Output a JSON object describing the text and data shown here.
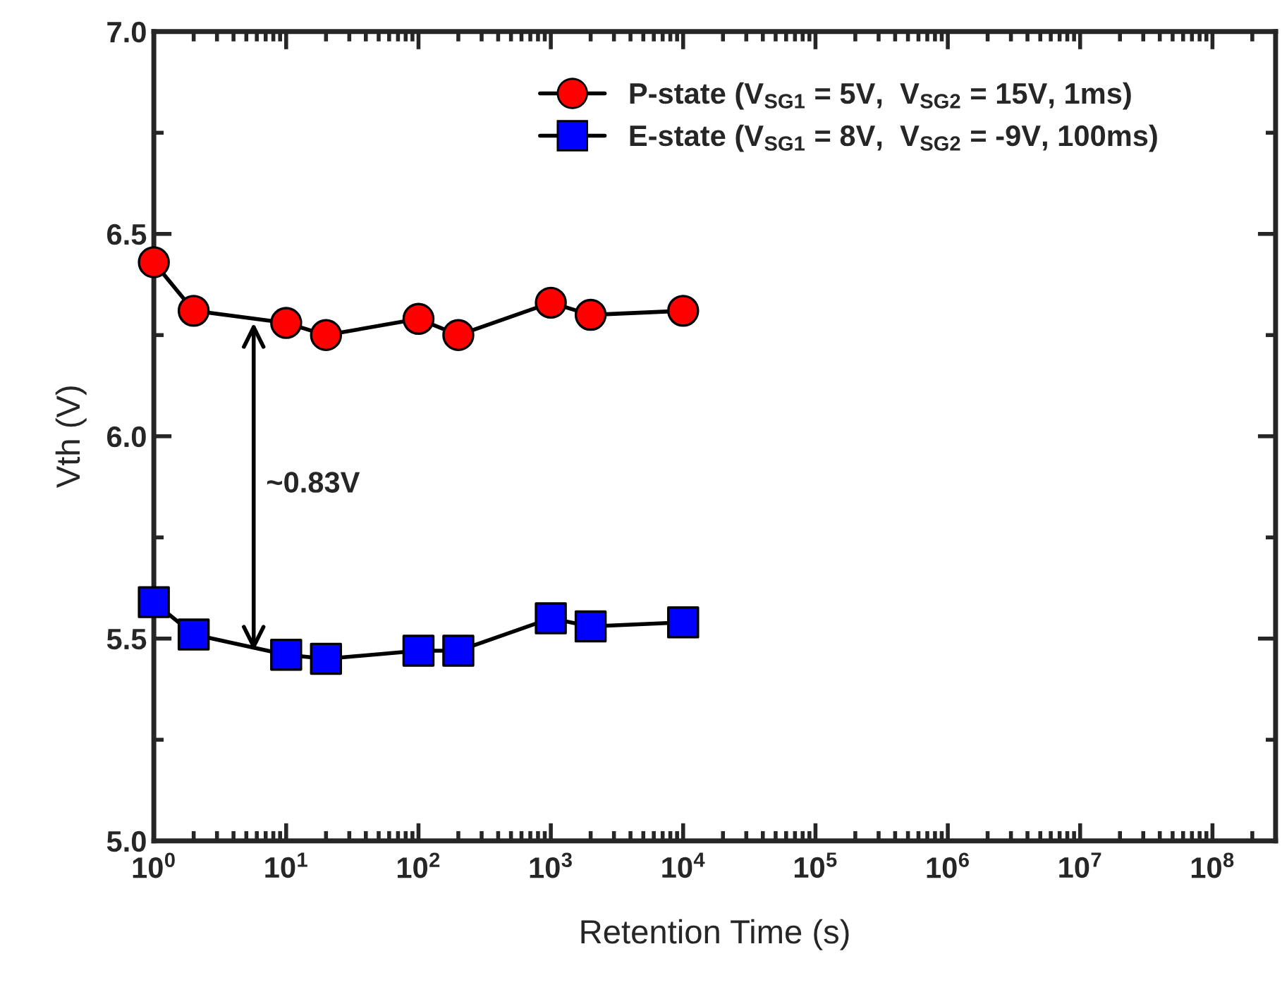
{
  "chart_data": {
    "type": "line",
    "xlabel": "Retention Time (s)",
    "ylabel": "Vth (V)",
    "log": "x",
    "xlim": [
      1,
      300000000
    ],
    "ylim": [
      5.0,
      7.0
    ],
    "xticks": [
      {
        "value": 1,
        "label": "10$^{0}$"
      },
      {
        "value": 10,
        "label": "10$^{1}$"
      },
      {
        "value": 100,
        "label": "10$^{2}$"
      },
      {
        "value": 1000,
        "label": "10$^{3}$"
      },
      {
        "value": 10000,
        "label": "10$^{4}$"
      },
      {
        "value": 100000,
        "label": "10$^{5}$"
      },
      {
        "value": 1000000,
        "label": "10$^{6}$"
      },
      {
        "value": 10000000,
        "label": "10$^{7}$"
      },
      {
        "value": 100000000,
        "label": "10$^{8}$"
      }
    ],
    "yticks": [
      {
        "value": 5.0,
        "label": "5.0"
      },
      {
        "value": 5.5,
        "label": "5.5"
      },
      {
        "value": 6.0,
        "label": "6.0"
      },
      {
        "value": 6.5,
        "label": "6.5"
      },
      {
        "value": 7.0,
        "label": "7.0"
      }
    ],
    "x": [
      1,
      2,
      10,
      20,
      100,
      200,
      1000,
      2000,
      10000
    ],
    "series": [
      {
        "name": "P-state (V$_{SG1}$ = 5V,  V$_{SG2}$ = 15V, 1ms)",
        "color": "#ff0000",
        "marker": "circle",
        "values": [
          6.43,
          6.31,
          6.28,
          6.25,
          6.29,
          6.25,
          6.33,
          6.3,
          6.31
        ]
      },
      {
        "name": "E-state (V$_{SG1}$ = 8V,  V$_{SG2}$ = -9V, 100ms)",
        "color": "#0000ff",
        "marker": "square",
        "values": [
          5.59,
          5.51,
          5.46,
          5.45,
          5.47,
          5.47,
          5.55,
          5.53,
          5.54
        ]
      }
    ],
    "annotations": [
      "~0.83V"
    ],
    "legend": "top",
    "grid": false,
    "line_style": "solid"
  }
}
